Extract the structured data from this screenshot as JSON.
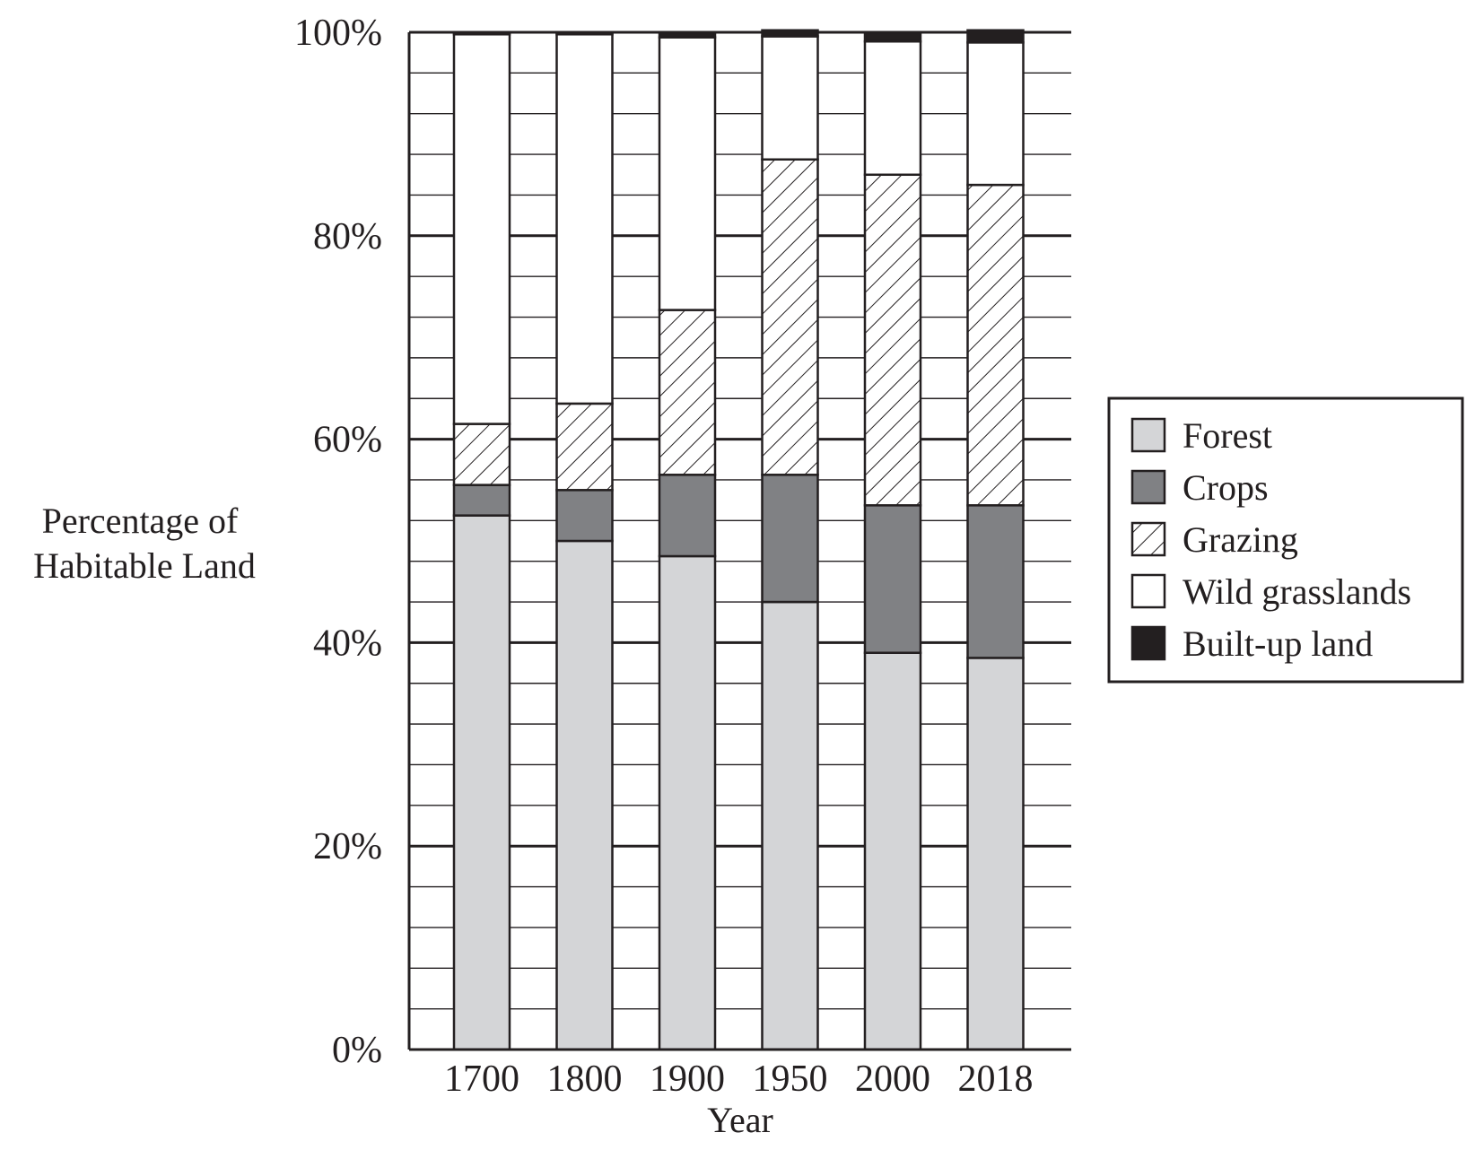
{
  "chart_data": {
    "type": "bar",
    "stacked": true,
    "title": "",
    "xlabel": "Year",
    "ylabel_lines": [
      "Percentage of",
      "Habitable Land"
    ],
    "ylim": [
      0,
      100
    ],
    "y_ticks": [
      0,
      20,
      40,
      60,
      80,
      100
    ],
    "y_tick_labels": [
      "0%",
      "20%",
      "40%",
      "60%",
      "80%",
      "100%"
    ],
    "minor_grid_step": 4,
    "grid": true,
    "categories": [
      "1700",
      "1800",
      "1900",
      "1950",
      "2000",
      "2018"
    ],
    "series": [
      {
        "name": "Forest",
        "color": "#d4d5d7",
        "pattern": "solid",
        "values": [
          52.5,
          50,
          48.5,
          44,
          39,
          38.5
        ]
      },
      {
        "name": "Crops",
        "color": "#808184",
        "pattern": "solid",
        "values": [
          3,
          5,
          8,
          12.5,
          14.5,
          15
        ]
      },
      {
        "name": "Grazing",
        "color": "#ffffff",
        "pattern": "hatch",
        "values": [
          6,
          8.5,
          16.2,
          31,
          32.5,
          31.5
        ]
      },
      {
        "name": "Wild grasslands",
        "color": "#ffffff",
        "pattern": "solid",
        "values": [
          38.3,
          36.3,
          26.8,
          12.1,
          13.1,
          14
        ]
      },
      {
        "name": "Built-up land",
        "color": "#231f20",
        "pattern": "solid",
        "values": [
          0.2,
          0.2,
          0.5,
          0.6,
          0.9,
          1.2
        ]
      }
    ],
    "legend": {
      "position": "right",
      "entries": [
        "Forest",
        "Crops",
        "Grazing",
        "Wild grasslands",
        "Built-up land"
      ]
    }
  }
}
